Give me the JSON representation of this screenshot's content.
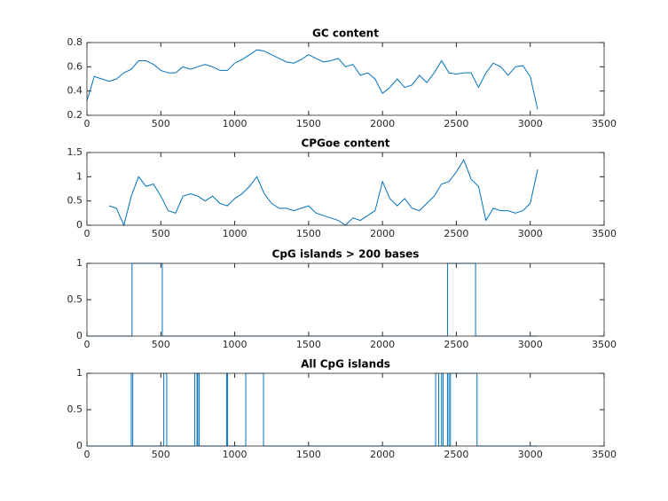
{
  "chart_data": [
    {
      "type": "line",
      "title": "GC content",
      "color": "#0072bd",
      "x": [
        0,
        50,
        100,
        150,
        200,
        250,
        300,
        350,
        400,
        450,
        500,
        550,
        600,
        650,
        700,
        750,
        800,
        850,
        900,
        950,
        1000,
        1050,
        1100,
        1150,
        1200,
        1250,
        1300,
        1350,
        1400,
        1450,
        1500,
        1550,
        1600,
        1650,
        1700,
        1750,
        1800,
        1850,
        1900,
        1950,
        2000,
        2050,
        2100,
        2150,
        2200,
        2250,
        2300,
        2350,
        2400,
        2450,
        2500,
        2550,
        2600,
        2650,
        2700,
        2750,
        2800,
        2850,
        2900,
        2950,
        3000,
        3050
      ],
      "values": [
        0.32,
        0.52,
        0.5,
        0.48,
        0.5,
        0.55,
        0.58,
        0.65,
        0.65,
        0.62,
        0.57,
        0.55,
        0.55,
        0.6,
        0.58,
        0.6,
        0.62,
        0.6,
        0.57,
        0.57,
        0.63,
        0.66,
        0.7,
        0.74,
        0.73,
        0.7,
        0.67,
        0.64,
        0.63,
        0.66,
        0.7,
        0.67,
        0.64,
        0.65,
        0.67,
        0.6,
        0.62,
        0.53,
        0.55,
        0.5,
        0.38,
        0.43,
        0.5,
        0.43,
        0.45,
        0.53,
        0.47,
        0.55,
        0.65,
        0.55,
        0.54,
        0.55,
        0.55,
        0.43,
        0.55,
        0.63,
        0.6,
        0.53,
        0.6,
        0.61,
        0.52,
        0.25
      ],
      "xlim": [
        0,
        3500
      ],
      "xticks": [
        0,
        500,
        1000,
        1500,
        2000,
        2500,
        3000,
        3500
      ],
      "ylim": [
        0.2,
        0.8
      ],
      "yticks": [
        0.2,
        0.4,
        0.6,
        0.8
      ]
    },
    {
      "type": "line",
      "title": "CPGoe content",
      "color": "#0072bd",
      "x": [
        150,
        200,
        250,
        300,
        350,
        400,
        450,
        500,
        550,
        600,
        650,
        700,
        750,
        800,
        850,
        900,
        950,
        1000,
        1050,
        1100,
        1150,
        1200,
        1250,
        1300,
        1350,
        1400,
        1450,
        1500,
        1550,
        1600,
        1650,
        1700,
        1750,
        1800,
        1850,
        1900,
        1950,
        2000,
        2050,
        2100,
        2150,
        2200,
        2250,
        2300,
        2350,
        2400,
        2450,
        2500,
        2550,
        2600,
        2650,
        2700,
        2750,
        2800,
        2850,
        2900,
        2950,
        3000,
        3050
      ],
      "values": [
        0.4,
        0.35,
        0.0,
        0.6,
        1.0,
        0.8,
        0.85,
        0.6,
        0.3,
        0.25,
        0.6,
        0.65,
        0.6,
        0.5,
        0.6,
        0.45,
        0.4,
        0.55,
        0.65,
        0.8,
        1.0,
        0.65,
        0.45,
        0.35,
        0.35,
        0.3,
        0.35,
        0.4,
        0.25,
        0.2,
        0.15,
        0.1,
        0.0,
        0.15,
        0.1,
        0.2,
        0.3,
        0.9,
        0.55,
        0.4,
        0.55,
        0.35,
        0.3,
        0.45,
        0.6,
        0.85,
        0.9,
        1.1,
        1.35,
        0.95,
        0.8,
        0.1,
        0.35,
        0.3,
        0.3,
        0.25,
        0.3,
        0.45,
        1.15
      ],
      "xlim": [
        0,
        3500
      ],
      "xticks": [
        0,
        500,
        1000,
        1500,
        2000,
        2500,
        3000,
        3500
      ],
      "ylim": [
        0,
        1.5
      ],
      "yticks": [
        0,
        0.5,
        1,
        1.5
      ]
    },
    {
      "type": "line",
      "title": "CpG islands > 200 bases",
      "color": "#0072bd",
      "x": [
        0,
        305,
        305,
        510,
        510,
        2440,
        2440,
        2630,
        2630,
        3050
      ],
      "values": [
        0,
        0,
        1,
        1,
        0,
        0,
        1,
        1,
        0,
        0
      ],
      "xlim": [
        0,
        3500
      ],
      "xticks": [
        0,
        500,
        1000,
        1500,
        2000,
        2500,
        3000,
        3500
      ],
      "ylim": [
        0,
        1
      ],
      "yticks": [
        0,
        0.5,
        1
      ]
    },
    {
      "type": "line",
      "title": "All CpG islands",
      "color": "#0072bd",
      "x": [
        0,
        300,
        300,
        310,
        310,
        520,
        520,
        540,
        540,
        730,
        730,
        745,
        745,
        750,
        750,
        760,
        760,
        945,
        945,
        952,
        952,
        1075,
        1075,
        1195,
        1195,
        2360,
        2360,
        2380,
        2380,
        2400,
        2400,
        2410,
        2410,
        2440,
        2440,
        2450,
        2450,
        2460,
        2460,
        2640,
        2640,
        3050
      ],
      "values": [
        0,
        0,
        1,
        1,
        0,
        0,
        1,
        1,
        0,
        0,
        1,
        1,
        0,
        0,
        1,
        1,
        0,
        0,
        1,
        1,
        0,
        0,
        1,
        1,
        0,
        0,
        1,
        1,
        0,
        0,
        1,
        1,
        0,
        0,
        1,
        1,
        0,
        0,
        1,
        1,
        0,
        0
      ],
      "xlim": [
        0,
        3500
      ],
      "xticks": [
        0,
        500,
        1000,
        1500,
        2000,
        2500,
        3000,
        3500
      ],
      "ylim": [
        0,
        1
      ],
      "yticks": [
        0,
        0.5,
        1
      ]
    }
  ]
}
